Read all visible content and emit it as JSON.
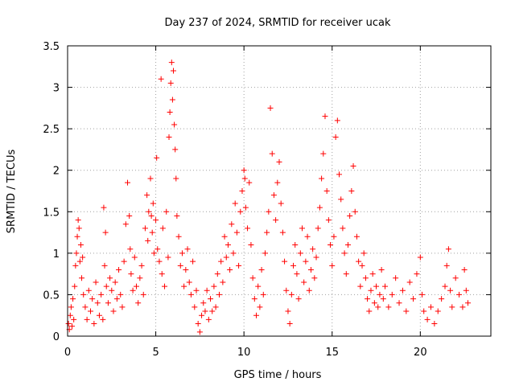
{
  "chart_data": {
    "type": "scatter",
    "title": "Day 237 of 2024, SRMTID for receiver ucak",
    "xlabel": "GPS time / hours",
    "ylabel": "SRMTID / TECUs",
    "xlim": [
      0,
      24
    ],
    "ylim": [
      0,
      3.5
    ],
    "xticks": [
      0,
      5,
      10,
      15,
      20
    ],
    "xtick_labels": [
      "0",
      "5",
      "10",
      "15",
      "20"
    ],
    "yticks": [
      0,
      0.5,
      1,
      1.5,
      2,
      2.5,
      3,
      3.5
    ],
    "ytick_labels": [
      "0",
      "0.5",
      "1",
      "1.5",
      "2",
      "2.5",
      "3",
      "3.5"
    ],
    "grid": true,
    "marker": "+",
    "series": [
      {
        "name": "SRMTID",
        "color": "#ff0000",
        "points": [
          [
            0.05,
            0.15
          ],
          [
            0.1,
            0.08
          ],
          [
            0.15,
            0.25
          ],
          [
            0.2,
            0.35
          ],
          [
            0.25,
            0.12
          ],
          [
            0.3,
            0.45
          ],
          [
            0.35,
            0.2
          ],
          [
            0.4,
            0.6
          ],
          [
            0.45,
            0.85
          ],
          [
            0.5,
            1.0
          ],
          [
            0.55,
            1.2
          ],
          [
            0.6,
            1.4
          ],
          [
            0.65,
            1.3
          ],
          [
            0.7,
            0.9
          ],
          [
            0.75,
            1.1
          ],
          [
            0.8,
            0.7
          ],
          [
            0.85,
            0.95
          ],
          [
            0.9,
            0.5
          ],
          [
            1.0,
            0.35
          ],
          [
            1.1,
            0.2
          ],
          [
            1.2,
            0.55
          ],
          [
            1.3,
            0.3
          ],
          [
            1.4,
            0.45
          ],
          [
            1.5,
            0.15
          ],
          [
            1.6,
            0.65
          ],
          [
            1.7,
            0.4
          ],
          [
            1.8,
            0.25
          ],
          [
            1.9,
            0.5
          ],
          [
            2.0,
            0.2
          ],
          [
            2.05,
            1.55
          ],
          [
            2.1,
            0.85
          ],
          [
            2.15,
            1.25
          ],
          [
            2.2,
            0.6
          ],
          [
            2.3,
            0.4
          ],
          [
            2.4,
            0.7
          ],
          [
            2.5,
            0.55
          ],
          [
            2.6,
            0.3
          ],
          [
            2.7,
            0.65
          ],
          [
            2.8,
            0.45
          ],
          [
            2.9,
            0.8
          ],
          [
            3.0,
            0.5
          ],
          [
            3.1,
            0.35
          ],
          [
            3.2,
            0.9
          ],
          [
            3.3,
            1.35
          ],
          [
            3.4,
            1.85
          ],
          [
            3.5,
            1.45
          ],
          [
            3.55,
            1.05
          ],
          [
            3.6,
            0.75
          ],
          [
            3.7,
            0.55
          ],
          [
            3.8,
            0.95
          ],
          [
            3.9,
            0.6
          ],
          [
            4.0,
            0.4
          ],
          [
            4.1,
            0.7
          ],
          [
            4.2,
            0.85
          ],
          [
            4.3,
            0.5
          ],
          [
            4.4,
            1.3
          ],
          [
            4.5,
            1.7
          ],
          [
            4.55,
            1.15
          ],
          [
            4.6,
            1.5
          ],
          [
            4.7,
            1.9
          ],
          [
            4.75,
            1.45
          ],
          [
            4.8,
            1.25
          ],
          [
            4.85,
            1.6
          ],
          [
            4.9,
            1.0
          ],
          [
            5.0,
            1.4
          ],
          [
            5.05,
            2.15
          ],
          [
            5.1,
            1.05
          ],
          [
            5.2,
            0.9
          ],
          [
            5.3,
            3.1
          ],
          [
            5.35,
            0.75
          ],
          [
            5.4,
            1.3
          ],
          [
            5.5,
            0.6
          ],
          [
            5.6,
            1.5
          ],
          [
            5.7,
            0.95
          ],
          [
            5.75,
            2.4
          ],
          [
            5.8,
            2.7
          ],
          [
            5.85,
            3.05
          ],
          [
            5.9,
            3.3
          ],
          [
            5.95,
            2.85
          ],
          [
            6.0,
            3.2
          ],
          [
            6.05,
            2.55
          ],
          [
            6.1,
            2.25
          ],
          [
            6.15,
            1.9
          ],
          [
            6.2,
            1.45
          ],
          [
            6.3,
            1.2
          ],
          [
            6.4,
            0.85
          ],
          [
            6.5,
            1.0
          ],
          [
            6.6,
            0.6
          ],
          [
            6.7,
            0.8
          ],
          [
            6.8,
            1.05
          ],
          [
            6.9,
            0.65
          ],
          [
            7.0,
            0.5
          ],
          [
            7.1,
            0.9
          ],
          [
            7.2,
            0.35
          ],
          [
            7.3,
            0.55
          ],
          [
            7.4,
            0.15
          ],
          [
            7.5,
            0.05
          ],
          [
            7.6,
            0.25
          ],
          [
            7.7,
            0.4
          ],
          [
            7.8,
            0.3
          ],
          [
            7.9,
            0.55
          ],
          [
            8.0,
            0.2
          ],
          [
            8.1,
            0.45
          ],
          [
            8.2,
            0.3
          ],
          [
            8.3,
            0.6
          ],
          [
            8.4,
            0.35
          ],
          [
            8.5,
            0.75
          ],
          [
            8.6,
            0.5
          ],
          [
            8.7,
            0.9
          ],
          [
            8.8,
            0.65
          ],
          [
            8.9,
            1.2
          ],
          [
            9.0,
            0.95
          ],
          [
            9.1,
            1.1
          ],
          [
            9.2,
            0.8
          ],
          [
            9.3,
            1.35
          ],
          [
            9.4,
            1.0
          ],
          [
            9.5,
            1.6
          ],
          [
            9.6,
            1.25
          ],
          [
            9.7,
            0.85
          ],
          [
            9.8,
            1.5
          ],
          [
            9.9,
            1.75
          ],
          [
            10.0,
            2.0
          ],
          [
            10.05,
            1.9
          ],
          [
            10.1,
            1.55
          ],
          [
            10.2,
            1.3
          ],
          [
            10.3,
            1.85
          ],
          [
            10.4,
            1.1
          ],
          [
            10.5,
            0.7
          ],
          [
            10.6,
            0.45
          ],
          [
            10.7,
            0.25
          ],
          [
            10.8,
            0.6
          ],
          [
            10.9,
            0.35
          ],
          [
            11.0,
            0.8
          ],
          [
            11.1,
            0.5
          ],
          [
            11.2,
            1.0
          ],
          [
            11.3,
            1.25
          ],
          [
            11.4,
            1.5
          ],
          [
            11.5,
            2.75
          ],
          [
            11.6,
            2.2
          ],
          [
            11.7,
            1.7
          ],
          [
            11.8,
            1.4
          ],
          [
            11.9,
            1.85
          ],
          [
            12.0,
            2.1
          ],
          [
            12.1,
            1.6
          ],
          [
            12.2,
            1.25
          ],
          [
            12.3,
            0.9
          ],
          [
            12.4,
            0.55
          ],
          [
            12.5,
            0.3
          ],
          [
            12.6,
            0.15
          ],
          [
            12.7,
            0.5
          ],
          [
            12.8,
            0.85
          ],
          [
            12.9,
            1.1
          ],
          [
            13.0,
            0.75
          ],
          [
            13.1,
            0.45
          ],
          [
            13.2,
            1.0
          ],
          [
            13.3,
            1.3
          ],
          [
            13.4,
            0.65
          ],
          [
            13.5,
            0.9
          ],
          [
            13.6,
            1.2
          ],
          [
            13.7,
            0.55
          ],
          [
            13.8,
            0.8
          ],
          [
            13.9,
            1.05
          ],
          [
            14.0,
            0.7
          ],
          [
            14.1,
            0.95
          ],
          [
            14.2,
            1.3
          ],
          [
            14.3,
            1.55
          ],
          [
            14.4,
            1.9
          ],
          [
            14.5,
            2.2
          ],
          [
            14.6,
            2.65
          ],
          [
            14.7,
            1.75
          ],
          [
            14.8,
            1.4
          ],
          [
            14.9,
            1.1
          ],
          [
            15.0,
            0.85
          ],
          [
            15.1,
            1.2
          ],
          [
            15.2,
            2.4
          ],
          [
            15.3,
            2.6
          ],
          [
            15.4,
            1.95
          ],
          [
            15.5,
            1.65
          ],
          [
            15.6,
            1.3
          ],
          [
            15.7,
            1.0
          ],
          [
            15.8,
            0.75
          ],
          [
            15.9,
            1.1
          ],
          [
            16.0,
            1.45
          ],
          [
            16.1,
            1.75
          ],
          [
            16.2,
            2.05
          ],
          [
            16.3,
            1.5
          ],
          [
            16.4,
            1.2
          ],
          [
            16.5,
            0.9
          ],
          [
            16.6,
            0.6
          ],
          [
            16.7,
            0.85
          ],
          [
            16.8,
            1.0
          ],
          [
            16.9,
            0.7
          ],
          [
            17.0,
            0.45
          ],
          [
            17.1,
            0.3
          ],
          [
            17.2,
            0.55
          ],
          [
            17.3,
            0.75
          ],
          [
            17.4,
            0.4
          ],
          [
            17.5,
            0.6
          ],
          [
            17.6,
            0.35
          ],
          [
            17.7,
            0.5
          ],
          [
            17.8,
            0.8
          ],
          [
            17.9,
            0.45
          ],
          [
            18.0,
            0.6
          ],
          [
            18.2,
            0.35
          ],
          [
            18.4,
            0.5
          ],
          [
            18.6,
            0.7
          ],
          [
            18.8,
            0.4
          ],
          [
            19.0,
            0.55
          ],
          [
            19.2,
            0.3
          ],
          [
            19.4,
            0.65
          ],
          [
            19.6,
            0.45
          ],
          [
            19.8,
            0.75
          ],
          [
            20.0,
            0.95
          ],
          [
            20.1,
            0.5
          ],
          [
            20.2,
            0.3
          ],
          [
            20.4,
            0.2
          ],
          [
            20.6,
            0.35
          ],
          [
            20.8,
            0.15
          ],
          [
            21.0,
            0.3
          ],
          [
            21.2,
            0.45
          ],
          [
            21.4,
            0.6
          ],
          [
            21.5,
            0.85
          ],
          [
            21.6,
            1.05
          ],
          [
            21.7,
            0.55
          ],
          [
            21.8,
            0.35
          ],
          [
            22.0,
            0.7
          ],
          [
            22.2,
            0.5
          ],
          [
            22.4,
            0.35
          ],
          [
            22.5,
            0.8
          ],
          [
            22.6,
            0.55
          ],
          [
            22.7,
            0.4
          ]
        ]
      }
    ]
  }
}
